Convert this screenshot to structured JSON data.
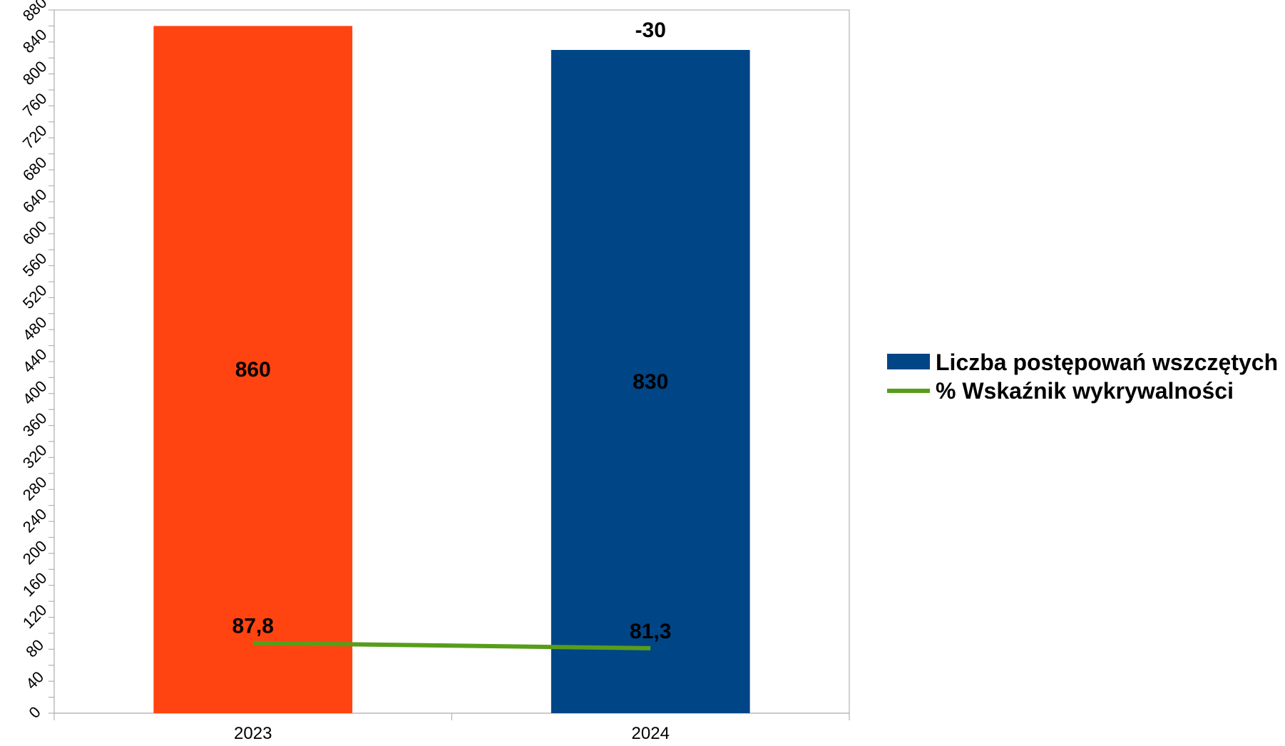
{
  "chart_data": {
    "type": "bar",
    "categories": [
      "2023",
      "2024"
    ],
    "series": [
      {
        "name": "Liczba postępowań wszczętych",
        "kind": "bar",
        "values": [
          860,
          830
        ],
        "colors": [
          "#FF4411",
          "#004586"
        ],
        "labels": [
          "860",
          "830"
        ]
      },
      {
        "name": "% Wskaźnik wykrywalności",
        "kind": "line",
        "values": [
          87.8,
          81.3
        ],
        "color": "#579D1C",
        "labels": [
          "87,8",
          "81,3"
        ]
      }
    ],
    "annotations": [
      {
        "category": "2024",
        "text": "-30"
      }
    ],
    "yticks": [
      0,
      40,
      80,
      120,
      160,
      200,
      240,
      280,
      320,
      360,
      400,
      440,
      480,
      520,
      560,
      600,
      640,
      680,
      720,
      760,
      800,
      840,
      880
    ],
    "ylim": [
      0,
      880
    ],
    "grid": false,
    "legend_position": "right",
    "title": "",
    "xlabel": "",
    "ylabel": ""
  }
}
